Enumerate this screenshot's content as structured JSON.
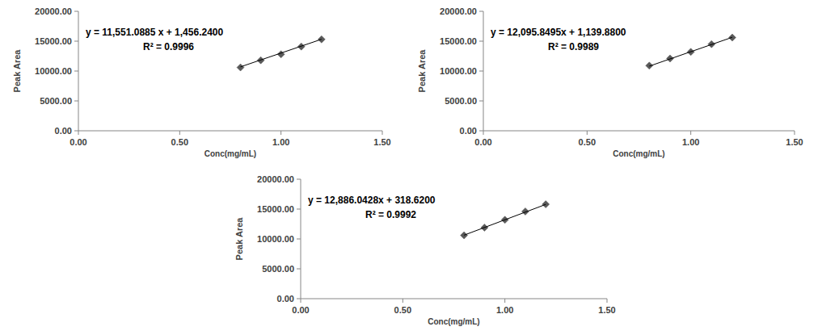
{
  "chart_data": [
    {
      "type": "scatter",
      "xlabel": "Conc(mg/mL)",
      "ylabel": "Peak Area",
      "annotations": [
        "y = 11,551.0885 x + 1,456.2400",
        "R² = 0.9996"
      ],
      "xlim": [
        0,
        1.5
      ],
      "ylim": [
        0,
        20000
      ],
      "grid": false,
      "xticks": [
        {
          "value": 0,
          "label": "0.00"
        },
        {
          "value": 0.5,
          "label": "0.50"
        },
        {
          "value": 1,
          "label": "1.00"
        },
        {
          "value": 1.5,
          "label": "1.50"
        }
      ],
      "yticks": [
        {
          "value": 0,
          "label": "0.00"
        },
        {
          "value": 5000,
          "label": "5000.00"
        },
        {
          "value": 10000,
          "label": "10000.00"
        },
        {
          "value": 15000,
          "label": "15000.00"
        },
        {
          "value": 20000,
          "label": "20000.00"
        }
      ],
      "series": [
        {
          "type": "scatter",
          "marker": "diamond",
          "color": "#595959",
          "x": [
            0.8,
            0.9,
            1.0,
            1.1,
            1.2
          ],
          "values": [
            10600,
            11800,
            12800,
            14100,
            15300
          ]
        },
        {
          "type": "line",
          "color": "#000000",
          "x": [
            0.8,
            1.2
          ],
          "values": [
            10700,
            15320
          ]
        }
      ]
    },
    {
      "type": "scatter",
      "xlabel": "Conc(mg/mL)",
      "ylabel": "Peak Area",
      "annotations": [
        "y = 12,095.8495x + 1,139.8800",
        "R² = 0.9989"
      ],
      "xlim": [
        0,
        1.5
      ],
      "ylim": [
        0,
        20000
      ],
      "grid": false,
      "xticks": [
        {
          "value": 0,
          "label": "0.00"
        },
        {
          "value": 0.5,
          "label": "0.50"
        },
        {
          "value": 1,
          "label": "1.00"
        },
        {
          "value": 1.5,
          "label": "1.50"
        }
      ],
      "yticks": [
        {
          "value": 0,
          "label": "0.00"
        },
        {
          "value": 5000,
          "label": "5000.00"
        },
        {
          "value": 10000,
          "label": "10000.00"
        },
        {
          "value": 15000,
          "label": "15000.00"
        },
        {
          "value": 20000,
          "label": "20000.00"
        }
      ],
      "series": [
        {
          "type": "scatter",
          "marker": "diamond",
          "color": "#595959",
          "x": [
            0.8,
            0.9,
            1.0,
            1.1,
            1.2
          ],
          "values": [
            10900,
            12100,
            13200,
            14500,
            15600
          ]
        },
        {
          "type": "line",
          "color": "#000000",
          "x": [
            0.8,
            1.2
          ],
          "values": [
            10820,
            15650
          ]
        }
      ]
    },
    {
      "type": "scatter",
      "xlabel": "Conc(mg/mL)",
      "ylabel": "Peak Area",
      "annotations": [
        "y = 12,886.0428x + 318.6200",
        "R² = 0.9992"
      ],
      "xlim": [
        0,
        1.5
      ],
      "ylim": [
        0,
        20000
      ],
      "grid": false,
      "xticks": [
        {
          "value": 0,
          "label": "0.00"
        },
        {
          "value": 0.5,
          "label": "0.50"
        },
        {
          "value": 1,
          "label": "1.00"
        },
        {
          "value": 1.5,
          "label": "1.50"
        }
      ],
      "yticks": [
        {
          "value": 0,
          "label": "0.00"
        },
        {
          "value": 5000,
          "label": "5000.00"
        },
        {
          "value": 10000,
          "label": "10000.00"
        },
        {
          "value": 15000,
          "label": "15000.00"
        },
        {
          "value": 20000,
          "label": "20000.00"
        }
      ],
      "series": [
        {
          "type": "scatter",
          "marker": "diamond",
          "color": "#595959",
          "x": [
            0.8,
            0.9,
            1.0,
            1.1,
            1.2
          ],
          "values": [
            10600,
            11900,
            13200,
            14600,
            15800
          ]
        },
        {
          "type": "line",
          "color": "#000000",
          "x": [
            0.8,
            1.2
          ],
          "values": [
            10630,
            15780
          ]
        }
      ]
    }
  ]
}
